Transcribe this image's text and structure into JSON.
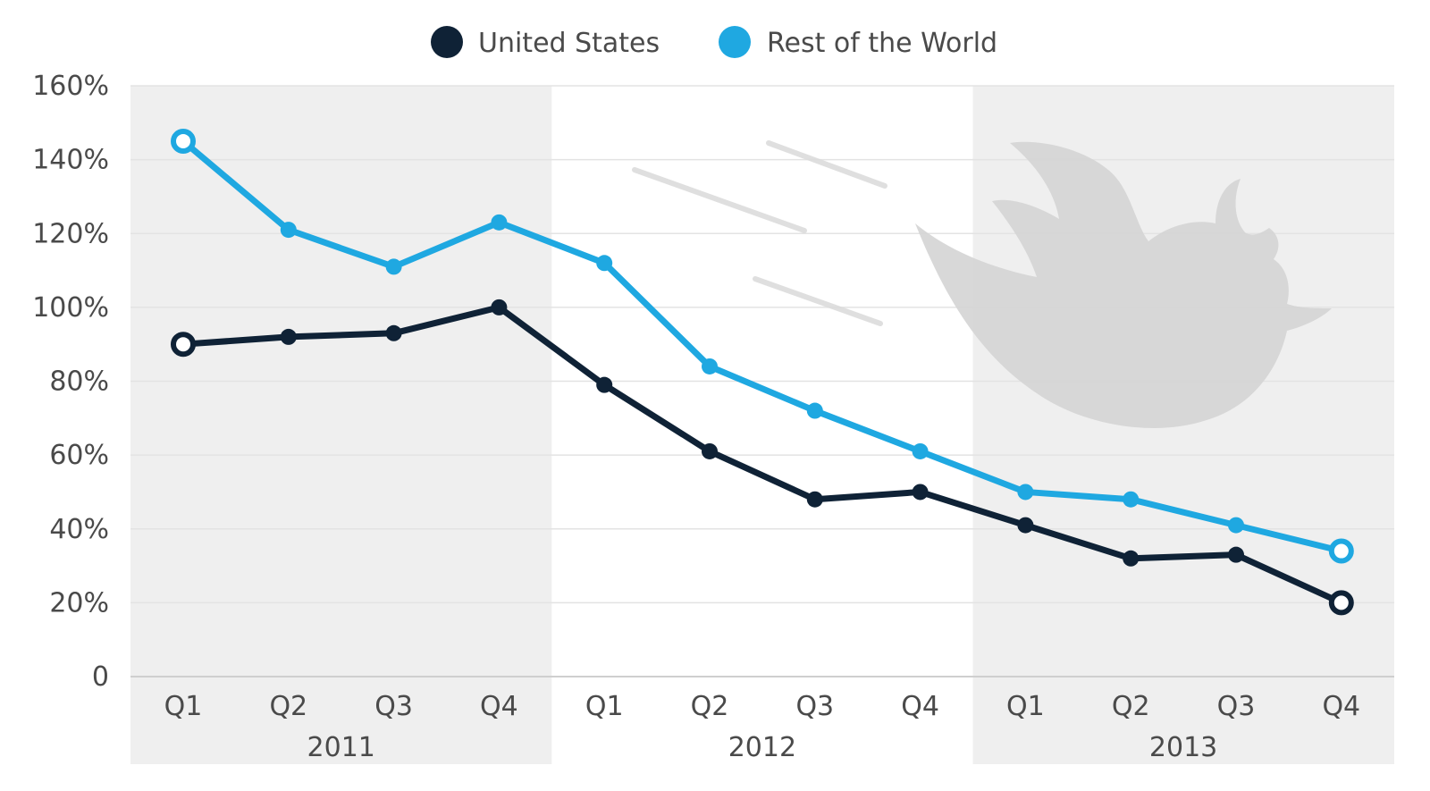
{
  "chart_data": {
    "type": "line",
    "x": [
      "Q1",
      "Q2",
      "Q3",
      "Q4",
      "Q1",
      "Q2",
      "Q3",
      "Q4",
      "Q1",
      "Q2",
      "Q3",
      "Q4"
    ],
    "groups": [
      {
        "label": "2011",
        "start": 0,
        "end": 3,
        "shaded": true
      },
      {
        "label": "2012",
        "start": 4,
        "end": 7,
        "shaded": false
      },
      {
        "label": "2013",
        "start": 8,
        "end": 11,
        "shaded": true
      }
    ],
    "series": [
      {
        "name": "United States",
        "color": "#0f2236",
        "values": [
          90,
          92,
          93,
          100,
          79,
          61,
          48,
          50,
          41,
          32,
          33,
          20
        ]
      },
      {
        "name": "Rest of the World",
        "color": "#1fa8e1",
        "values": [
          145,
          121,
          111,
          123,
          112,
          84,
          72,
          61,
          50,
          48,
          41,
          34
        ]
      }
    ],
    "ylim": [
      0,
      160
    ],
    "yticks": [
      {
        "value": 0,
        "label": "0"
      },
      {
        "value": 20,
        "label": "20%"
      },
      {
        "value": 40,
        "label": "40%"
      },
      {
        "value": 60,
        "label": "60%"
      },
      {
        "value": 80,
        "label": "80%"
      },
      {
        "value": 100,
        "label": "100%"
      },
      {
        "value": 120,
        "label": "120%"
      },
      {
        "value": 140,
        "label": "140%"
      },
      {
        "value": 160,
        "label": "160%"
      }
    ],
    "grid": true,
    "legend_position": "top-center",
    "endpoint_markers": "hollow",
    "watermark_icon": "bird-logo-icon"
  }
}
